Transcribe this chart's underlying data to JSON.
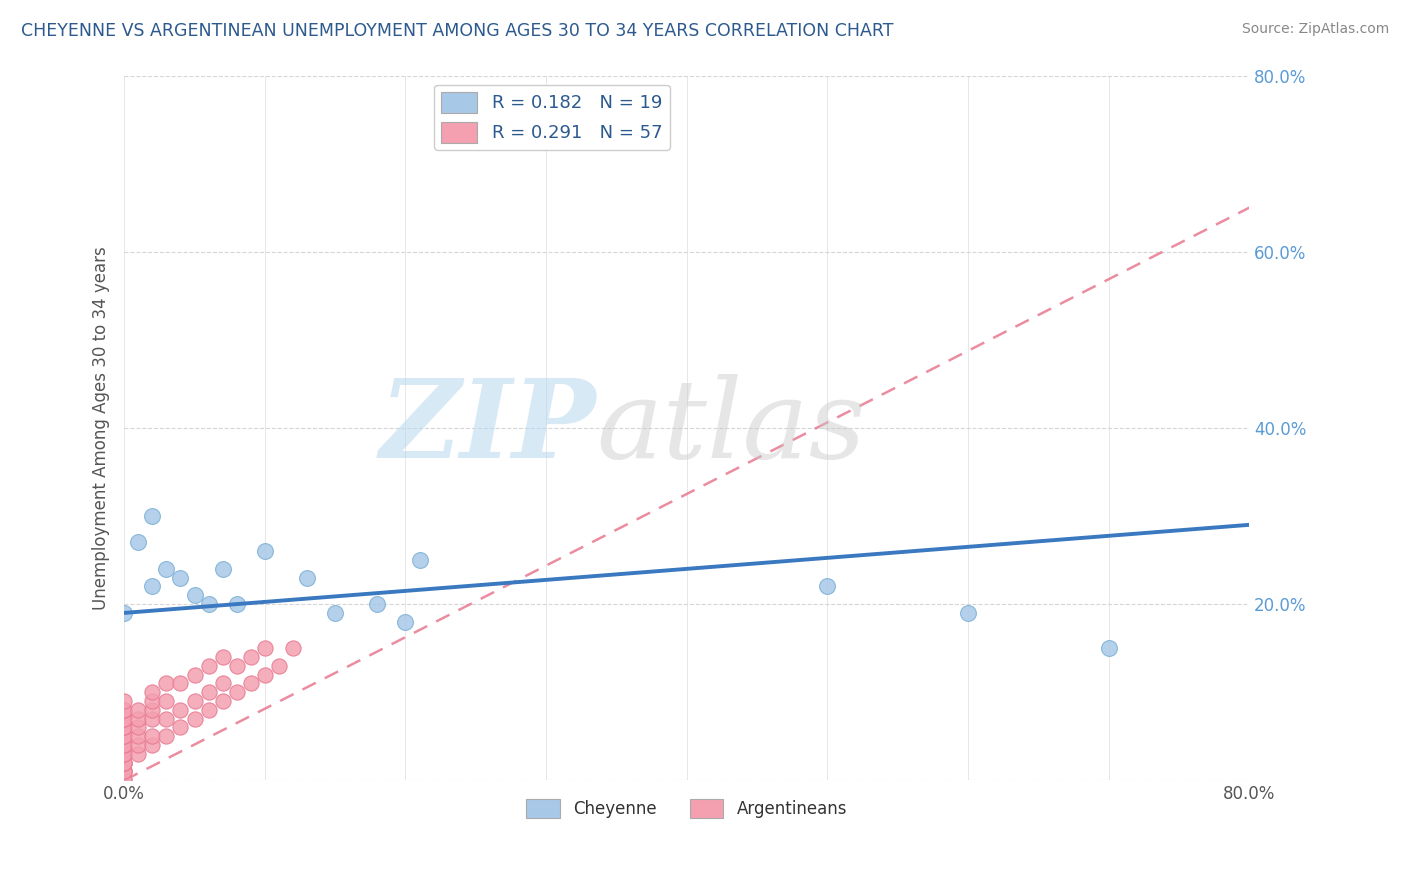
{
  "title": "CHEYENNE VS ARGENTINEAN UNEMPLOYMENT AMONG AGES 30 TO 34 YEARS CORRELATION CHART",
  "source": "Source: ZipAtlas.com",
  "ylabel": "Unemployment Among Ages 30 to 34 years",
  "xlim": [
    0.0,
    0.8
  ],
  "ylim": [
    0.0,
    0.8
  ],
  "xticks": [
    0.0,
    0.1,
    0.2,
    0.3,
    0.4,
    0.5,
    0.6,
    0.7,
    0.8
  ],
  "xticklabels": [
    "0.0%",
    "",
    "",
    "",
    "",
    "",
    "",
    "",
    "80.0%"
  ],
  "yticks": [
    0.0,
    0.2,
    0.4,
    0.6,
    0.8
  ],
  "yticklabels": [
    "",
    "20.0%",
    "40.0%",
    "60.0%",
    "80.0%"
  ],
  "cheyenne_color": "#a8c8e8",
  "cheyenne_edge_color": "#7aafd4",
  "argentinean_color": "#f4a0b0",
  "argentinean_edge_color": "#e87890",
  "cheyenne_line_color": "#3a78c0",
  "argentinean_line_color": "#e87890",
  "cheyenne_R": 0.182,
  "cheyenne_N": 19,
  "argentinean_R": 0.291,
  "argentinean_N": 57,
  "legend_label_cheyenne": "Cheyenne",
  "legend_label_argentinean": "Argentineans",
  "cheyenne_x": [
    0.0,
    0.01,
    0.02,
    0.02,
    0.03,
    0.04,
    0.05,
    0.06,
    0.07,
    0.08,
    0.1,
    0.13,
    0.15,
    0.18,
    0.2,
    0.21,
    0.5,
    0.6,
    0.7
  ],
  "cheyenne_y": [
    0.19,
    0.27,
    0.3,
    0.22,
    0.24,
    0.23,
    0.21,
    0.2,
    0.24,
    0.2,
    0.26,
    0.23,
    0.19,
    0.2,
    0.18,
    0.25,
    0.22,
    0.19,
    0.15
  ],
  "argentinean_x": [
    0.0,
    0.0,
    0.0,
    0.0,
    0.0,
    0.0,
    0.0,
    0.0,
    0.0,
    0.0,
    0.0,
    0.0,
    0.0,
    0.0,
    0.0,
    0.0,
    0.0,
    0.0,
    0.0,
    0.0,
    0.0,
    0.01,
    0.01,
    0.01,
    0.01,
    0.01,
    0.01,
    0.02,
    0.02,
    0.02,
    0.02,
    0.02,
    0.02,
    0.03,
    0.03,
    0.03,
    0.03,
    0.04,
    0.04,
    0.04,
    0.05,
    0.05,
    0.05,
    0.06,
    0.06,
    0.06,
    0.07,
    0.07,
    0.07,
    0.08,
    0.08,
    0.09,
    0.09,
    0.1,
    0.1,
    0.11,
    0.12
  ],
  "argentinean_y": [
    0.0,
    0.0,
    0.01,
    0.01,
    0.01,
    0.02,
    0.02,
    0.02,
    0.03,
    0.03,
    0.04,
    0.04,
    0.05,
    0.05,
    0.06,
    0.06,
    0.07,
    0.07,
    0.08,
    0.08,
    0.09,
    0.03,
    0.04,
    0.05,
    0.06,
    0.07,
    0.08,
    0.04,
    0.05,
    0.07,
    0.08,
    0.09,
    0.1,
    0.05,
    0.07,
    0.09,
    0.11,
    0.06,
    0.08,
    0.11,
    0.07,
    0.09,
    0.12,
    0.08,
    0.1,
    0.13,
    0.09,
    0.11,
    0.14,
    0.1,
    0.13,
    0.11,
    0.14,
    0.12,
    0.15,
    0.13,
    0.15
  ],
  "cheyenne_trend_x0": 0.0,
  "cheyenne_trend_y0": 0.19,
  "cheyenne_trend_x1": 0.8,
  "cheyenne_trend_y1": 0.29,
  "argentinean_trend_x0": 0.0,
  "argentinean_trend_y0": 0.0,
  "argentinean_trend_x1": 0.8,
  "argentinean_trend_y1": 0.65
}
